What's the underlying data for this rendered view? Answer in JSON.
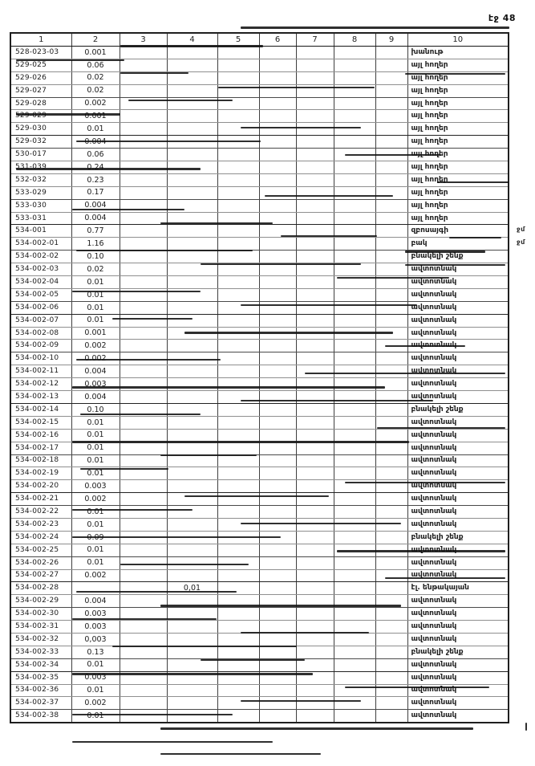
{
  "page": {
    "label": "էջ 48"
  },
  "colors": {
    "ink": "#1b1b1b",
    "paper": "#ffffff",
    "grid_line": "#3f3f3f"
  },
  "table": {
    "headers": [
      "1",
      "2",
      "3",
      "4",
      "5",
      "6",
      "7",
      "8",
      "9",
      "10"
    ],
    "rows": [
      {
        "code": "528-023-03",
        "area": "0.001",
        "c4": "",
        "use": "խանութ",
        "note": ""
      },
      {
        "code": "529-025",
        "area": "0.06",
        "c4": "",
        "use": "այլ հողեր",
        "note": ""
      },
      {
        "code": "529-026",
        "area": "0.02",
        "c4": "",
        "use": "այլ հողեր",
        "note": ""
      },
      {
        "code": "529-027",
        "area": "0.02",
        "c4": "",
        "use": "այլ հողեր",
        "note": ""
      },
      {
        "code": "529-028",
        "area": "0.002",
        "c4": "",
        "use": "այլ հողեր",
        "note": ""
      },
      {
        "code": "529-029",
        "area": "0.001",
        "c4": "",
        "use": "այլ հողեր",
        "note": ""
      },
      {
        "code": "529-030",
        "area": "0.01",
        "c4": "",
        "use": "այլ հողեր",
        "note": ""
      },
      {
        "code": "529-032",
        "area": "0.004",
        "c4": "",
        "use": "այլ հողեր",
        "note": ""
      },
      {
        "code": "530-017",
        "area": "0.06",
        "c4": "",
        "use": "այլ հողեր",
        "note": ""
      },
      {
        "code": "531-039",
        "area": "0.24",
        "c4": "",
        "use": "այլ հողեր",
        "note": ""
      },
      {
        "code": "532-032",
        "area": "0.23",
        "c4": "",
        "use": "այլ հողեր",
        "note": ""
      },
      {
        "code": "533-029",
        "area": "0.17",
        "c4": "",
        "use": "այլ հողեր",
        "note": ""
      },
      {
        "code": "533-030",
        "area": "0.004",
        "c4": "",
        "use": "այլ հողեր",
        "note": ""
      },
      {
        "code": "533-031",
        "area": "0.004",
        "c4": "",
        "use": "այլ հողեր",
        "note": ""
      },
      {
        "code": "534-001",
        "area": "0.77",
        "c4": "",
        "use": "զբոսայգի",
        "note": "ջմ"
      },
      {
        "code": "534-002-01",
        "area": "1.16",
        "c4": "",
        "use": "բակ",
        "note": "ջմ"
      },
      {
        "code": "534-002-02",
        "area": "0.10",
        "c4": "",
        "use": "բնակելի շենք",
        "note": ""
      },
      {
        "code": "534-002-03",
        "area": "0.02",
        "c4": "",
        "use": "ավտոտնակ",
        "note": ""
      },
      {
        "code": "534-002-04",
        "area": "0.01",
        "c4": "",
        "use": "ավտոտնակ",
        "note": ""
      },
      {
        "code": "534-002-05",
        "area": "0.01",
        "c4": "",
        "use": "ավտոտնակ",
        "note": ""
      },
      {
        "code": "534-002-06",
        "area": "0.01",
        "c4": "",
        "use": "ավտոտնակ",
        "note": ""
      },
      {
        "code": "534-002-07",
        "area": "0.01",
        "c4": "",
        "use": "ավտոտնակ",
        "note": ""
      },
      {
        "code": "534-002-08",
        "area": "0.001",
        "c4": "",
        "use": "ավտոտնակ",
        "note": ""
      },
      {
        "code": "534-002-09",
        "area": "0.002",
        "c4": "",
        "use": "ավտոտնակ",
        "note": ""
      },
      {
        "code": "534-002-10",
        "area": "0.002",
        "c4": "",
        "use": "ավտոտնակ",
        "note": ""
      },
      {
        "code": "534-002-11",
        "area": "0.004",
        "c4": "",
        "use": "ավտոտնակ",
        "note": ""
      },
      {
        "code": "534-002-12",
        "area": "0.003",
        "c4": "",
        "use": "ավտոտնակ",
        "note": ""
      },
      {
        "code": "534-002-13",
        "area": "0.004",
        "c4": "",
        "use": "ավտոտնակ",
        "note": ""
      },
      {
        "code": "534-002-14",
        "area": "0.10",
        "c4": "",
        "use": "բնակելի շենք",
        "note": ""
      },
      {
        "code": "534-002-15",
        "area": "0.01",
        "c4": "",
        "use": "ավտոտնակ",
        "note": ""
      },
      {
        "code": "534-002-16",
        "area": "0.01",
        "c4": "",
        "use": "ավտոտնակ",
        "note": ""
      },
      {
        "code": "534-002-17",
        "area": "0.01",
        "c4": "",
        "use": "ավտոտնակ",
        "note": ""
      },
      {
        "code": "534-002-18",
        "area": "0.01",
        "c4": "",
        "use": "ավտոտնակ",
        "note": ""
      },
      {
        "code": "534-002-19",
        "area": "0.01",
        "c4": "",
        "use": "ավտոտնակ",
        "note": ""
      },
      {
        "code": "534-002-20",
        "area": "0.003",
        "c4": "",
        "use": "ավտոտնակ",
        "note": ""
      },
      {
        "code": "534-002-21",
        "area": "0.002",
        "c4": "",
        "use": "ավտոտնակ",
        "note": ""
      },
      {
        "code": "534-002-22",
        "area": "0.01",
        "c4": "",
        "use": "ավտոտնակ",
        "note": ""
      },
      {
        "code": "534-002-23",
        "area": "0.01",
        "c4": "",
        "use": "ավտոտնակ",
        "note": ""
      },
      {
        "code": "534-002-24",
        "area": "0.09",
        "c4": "",
        "use": "բնակելի շենք",
        "note": ""
      },
      {
        "code": "534-002-25",
        "area": "0.01",
        "c4": "",
        "use": "ավտոտնակ",
        "note": ""
      },
      {
        "code": "534-002-26",
        "area": "0.01",
        "c4": "",
        "use": "ավտոտնակ",
        "note": ""
      },
      {
        "code": "534-002-27",
        "area": "0.002",
        "c4": "",
        "use": "ավտոտնակ",
        "note": ""
      },
      {
        "code": "534-002-28",
        "area": "",
        "c4": "0,01",
        "use": "էլ. ենթակայան",
        "note": ""
      },
      {
        "code": "534-002-29",
        "area": "0.004",
        "c4": "",
        "use": "ավտոտնակ",
        "note": ""
      },
      {
        "code": "534-002-30",
        "area": "0.003",
        "c4": "",
        "use": "ավտոտնակ",
        "note": ""
      },
      {
        "code": "534-002-31",
        "area": "0.003",
        "c4": "",
        "use": "ավտոտնակ",
        "note": ""
      },
      {
        "code": "534-002-32",
        "area": "0,003",
        "c4": "",
        "use": "ավտոտնակ",
        "note": ""
      },
      {
        "code": "534-002-33",
        "area": "0.13",
        "c4": "",
        "use": "բնակելի շենք",
        "note": ""
      },
      {
        "code": "534-002-34",
        "area": "0.01",
        "c4": "",
        "use": "ավտոտնակ",
        "note": ""
      },
      {
        "code": "534-002-35",
        "area": "0.003",
        "c4": "",
        "use": "ավտոտնակ",
        "note": ""
      },
      {
        "code": "534-002-36",
        "area": "0.01",
        "c4": "",
        "use": "ավտոտնակ",
        "note": ""
      },
      {
        "code": "534-002-37",
        "area": "0.002",
        "c4": "",
        "use": "ավտոտնակ",
        "note": ""
      },
      {
        "code": "534-002-38",
        "area": "0.01",
        "c4": "",
        "use": "ավտոտնակ",
        "note": ""
      }
    ]
  }
}
